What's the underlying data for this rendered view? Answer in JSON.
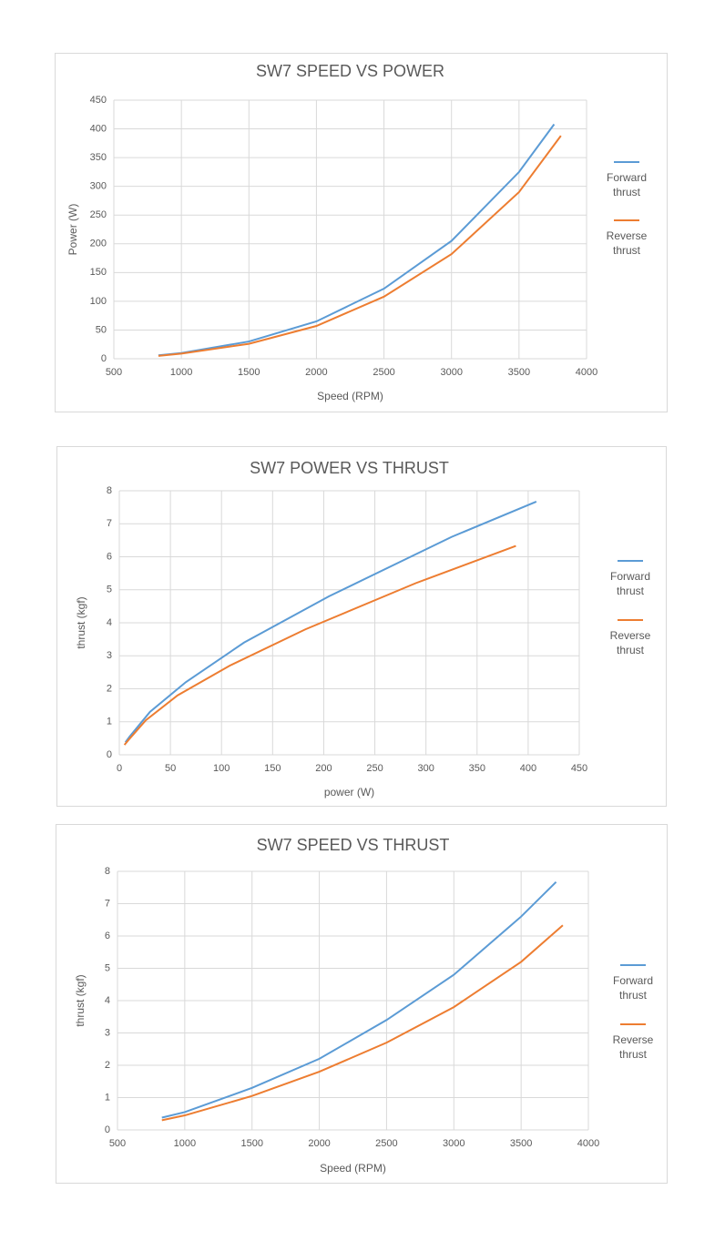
{
  "chart_data": [
    {
      "type": "line",
      "title": "SW7 SPEED VS POWER",
      "x_label": "Speed (RPM)",
      "y_label": "Power (W)",
      "xlim": [
        500,
        4000
      ],
      "xticks": [
        500,
        1000,
        1500,
        2000,
        2500,
        3000,
        3500,
        4000
      ],
      "ylim": [
        0,
        450
      ],
      "yticks": [
        0,
        50,
        100,
        150,
        200,
        250,
        300,
        350,
        400,
        450
      ],
      "grid": true,
      "legend": "right",
      "series": [
        {
          "name": "Forward thrust",
          "color": "#5b9bd5",
          "x": [
            830,
            1000,
            1500,
            2000,
            2500,
            3000,
            3500,
            3760
          ],
          "values": [
            6,
            10,
            30,
            65,
            122,
            205,
            325,
            408
          ]
        },
        {
          "name": "Reverse thrust",
          "color": "#ed7d31",
          "x": [
            830,
            1000,
            1500,
            2000,
            2500,
            3000,
            3500,
            3810
          ],
          "values": [
            5,
            9,
            26,
            57,
            108,
            182,
            290,
            388
          ]
        }
      ]
    },
    {
      "type": "line",
      "title": "SW7 POWER VS THRUST",
      "x_label": "power (W)",
      "y_label": "thrust (kgf)",
      "xlim": [
        0,
        450
      ],
      "xticks": [
        0,
        50,
        100,
        150,
        200,
        250,
        300,
        350,
        400,
        450
      ],
      "ylim": [
        0,
        8
      ],
      "yticks": [
        0,
        1,
        2,
        3,
        4,
        5,
        6,
        7,
        8
      ],
      "grid": true,
      "legend": "right",
      "series": [
        {
          "name": "Forward thrust",
          "color": "#5b9bd5",
          "x": [
            6,
            10,
            30,
            65,
            122,
            205,
            325,
            408
          ],
          "values": [
            0.38,
            0.55,
            1.3,
            2.2,
            3.4,
            4.8,
            6.6,
            7.67
          ]
        },
        {
          "name": "Reverse thrust",
          "color": "#ed7d31",
          "x": [
            5,
            9,
            26,
            57,
            108,
            182,
            290,
            388
          ],
          "values": [
            0.3,
            0.45,
            1.05,
            1.8,
            2.7,
            3.8,
            5.2,
            6.33
          ]
        }
      ]
    },
    {
      "type": "line",
      "title": "SW7 SPEED VS THRUST",
      "x_label": "Speed (RPM)",
      "y_label": "thrust (kgf)",
      "xlim": [
        500,
        4000
      ],
      "xticks": [
        500,
        1000,
        1500,
        2000,
        2500,
        3000,
        3500,
        4000
      ],
      "ylim": [
        0,
        8
      ],
      "yticks": [
        0,
        1,
        2,
        3,
        4,
        5,
        6,
        7,
        8
      ],
      "grid": true,
      "legend": "right",
      "series": [
        {
          "name": "Forward thrust",
          "color": "#5b9bd5",
          "x": [
            830,
            1000,
            1500,
            2000,
            2500,
            3000,
            3500,
            3760
          ],
          "values": [
            0.38,
            0.55,
            1.3,
            2.2,
            3.4,
            4.8,
            6.6,
            7.67
          ]
        },
        {
          "name": "Reverse thrust",
          "color": "#ed7d31",
          "x": [
            830,
            1000,
            1500,
            2000,
            2500,
            3000,
            3500,
            3810
          ],
          "values": [
            0.3,
            0.45,
            1.05,
            1.8,
            2.7,
            3.8,
            5.2,
            6.33
          ]
        }
      ]
    }
  ]
}
